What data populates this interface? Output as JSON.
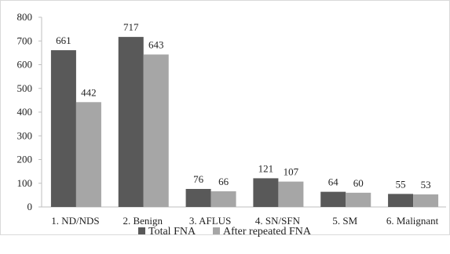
{
  "chart_data": {
    "type": "bar",
    "categories": [
      "1.  ND/NDS",
      "2. Benign",
      "3. AFLUS",
      "4. SN/SFN",
      "5. SM",
      "6. Malignant"
    ],
    "series": [
      {
        "name": "Total FNA",
        "values": [
          661,
          717,
          76,
          121,
          64,
          55
        ],
        "color": "#595959"
      },
      {
        "name": "After repeated FNA",
        "values": [
          442,
          643,
          66,
          107,
          60,
          53
        ],
        "color": "#a6a6a6"
      }
    ],
    "title": "",
    "xlabel": "",
    "ylabel": "",
    "ylim": [
      0,
      800
    ],
    "yticks": [
      0,
      100,
      200,
      300,
      400,
      500,
      600,
      700,
      800
    ],
    "grid": false,
    "legend_position": "bottom",
    "data_labels": true
  }
}
